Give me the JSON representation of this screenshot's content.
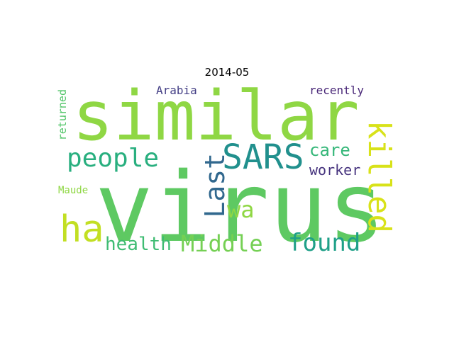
{
  "title": "2014-05",
  "words": [
    {
      "id": "word-similar",
      "text": "similar",
      "color": "#8fd744"
    },
    {
      "id": "word-virus",
      "text": "virus",
      "color": "#5ec962"
    },
    {
      "id": "word-people",
      "text": "people",
      "color": "#29af7f"
    },
    {
      "id": "word-sars",
      "text": "SARS",
      "color": "#21908d"
    },
    {
      "id": "word-killed",
      "text": "killed",
      "color": "#d8e219"
    },
    {
      "id": "word-last",
      "text": "Last",
      "color": "#31688e"
    },
    {
      "id": "word-care",
      "text": "care",
      "color": "#35b779"
    },
    {
      "id": "word-worker",
      "text": "worker",
      "color": "#46337e"
    },
    {
      "id": "word-ha",
      "text": "ha",
      "color": "#c2df23"
    },
    {
      "id": "word-wa",
      "text": "wa",
      "color": "#8fd744"
    },
    {
      "id": "word-health",
      "text": "health",
      "color": "#3fbc73"
    },
    {
      "id": "word-middle",
      "text": "Middle",
      "color": "#75d054"
    },
    {
      "id": "word-found",
      "text": "found",
      "color": "#1fa088"
    },
    {
      "id": "word-arabia",
      "text": "Arabia",
      "color": "#433e85"
    },
    {
      "id": "word-recently",
      "text": "recently",
      "color": "#482677"
    },
    {
      "id": "word-returned",
      "text": "returned",
      "color": "#52c569"
    },
    {
      "id": "word-maude",
      "text": "Maude",
      "color": "#8fd744"
    }
  ]
}
